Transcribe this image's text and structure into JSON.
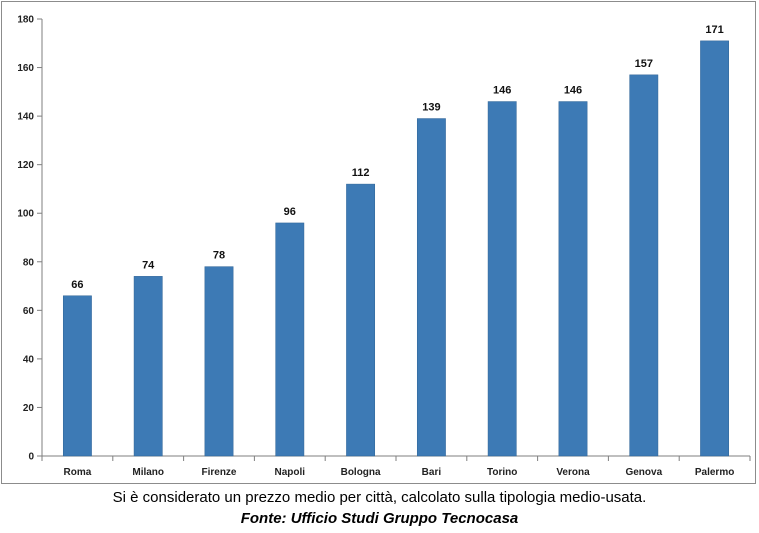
{
  "chart_data": {
    "type": "bar",
    "title": "",
    "xlabel": "",
    "ylabel": "",
    "categories": [
      "Roma",
      "Milano",
      "Firenze",
      "Napoli",
      "Bologna",
      "Bari",
      "Torino",
      "Verona",
      "Genova",
      "Palermo"
    ],
    "values": [
      66,
      74,
      78,
      96,
      112,
      139,
      146,
      146,
      157,
      171
    ],
    "ylim": [
      0,
      180
    ],
    "yticks": [
      0,
      20,
      40,
      60,
      80,
      100,
      120,
      140,
      160,
      180
    ],
    "grid": false,
    "legend": "none",
    "bar_color": "#3d7ab5",
    "data_labels": true
  },
  "caption": "Si è considerato un prezzo medio per città, calcolato sulla tipologia medio-usata.",
  "source": "Fonte: Ufficio Studi Gruppo Tecnocasa"
}
